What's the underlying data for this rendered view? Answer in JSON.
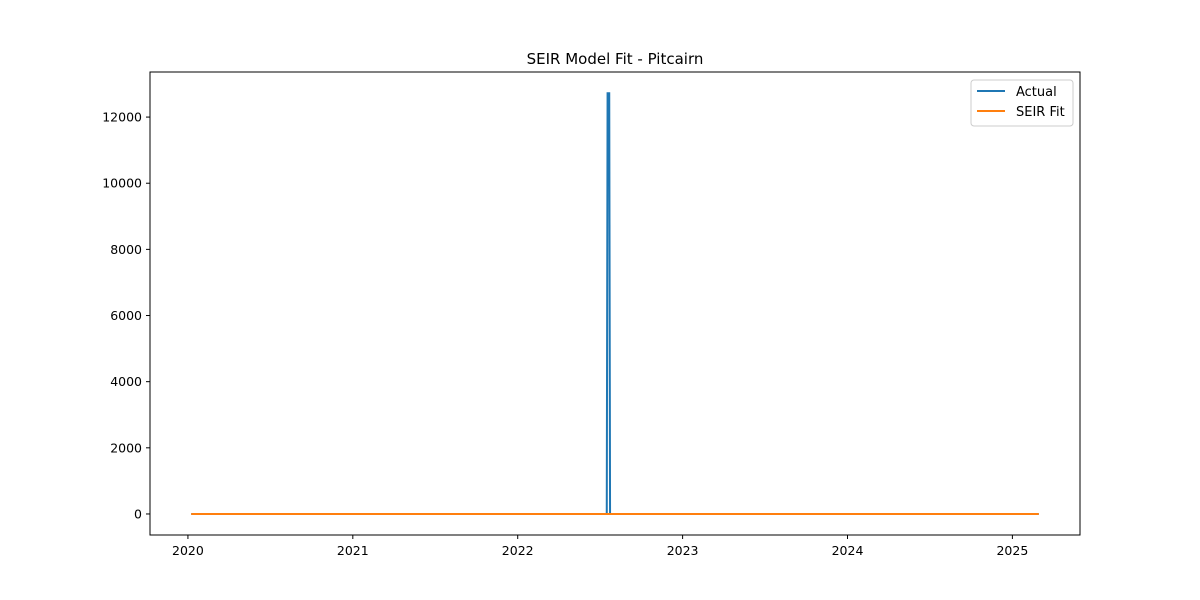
{
  "chart_data": {
    "type": "line",
    "title": "SEIR Model Fit - Pitcairn",
    "xlabel": "",
    "ylabel": "",
    "xlim": [
      2019.77,
      2025.41
    ],
    "ylim": [
      -636,
      13363
    ],
    "x_ticks": [
      2020,
      2021,
      2022,
      2023,
      2024,
      2025
    ],
    "x_tick_labels": [
      "2020",
      "2021",
      "2022",
      "2023",
      "2024",
      "2025"
    ],
    "y_ticks": [
      0,
      2000,
      4000,
      6000,
      8000,
      10000,
      12000
    ],
    "y_tick_labels": [
      "0",
      "2000",
      "4000",
      "6000",
      "8000",
      "10000",
      "12000"
    ],
    "grid": false,
    "legend_position": "top-right",
    "series": [
      {
        "name": "Actual",
        "color": "#1f77b4",
        "x": [
          2020.02,
          2022.54,
          2022.545,
          2022.555,
          2022.56,
          2025.16
        ],
        "y": [
          0,
          0,
          12720,
          12720,
          0,
          0
        ]
      },
      {
        "name": "SEIR Fit",
        "color": "#ff7f0e",
        "x": [
          2020.02,
          2025.16
        ],
        "y": [
          0,
          0
        ]
      }
    ]
  }
}
